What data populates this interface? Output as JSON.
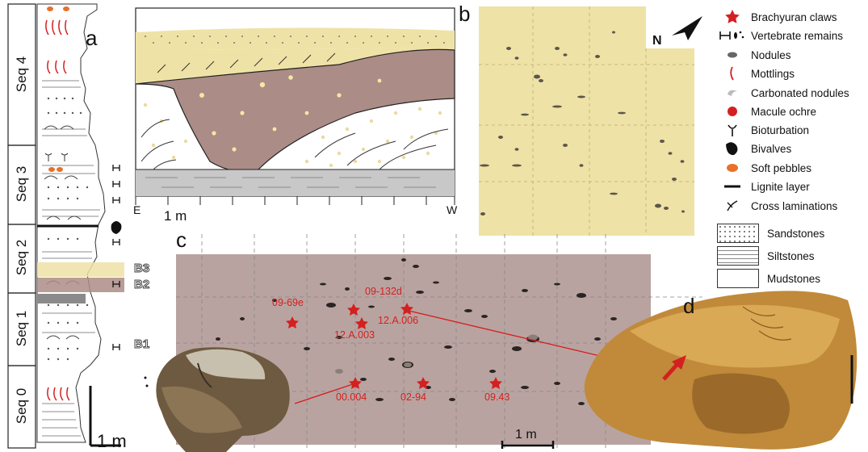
{
  "panels": {
    "a": "a",
    "b": "b",
    "c": "c",
    "d": "d"
  },
  "sequences": [
    "Seq 4",
    "Seq 3",
    "Seq 2",
    "Seq 1",
    "Seq 0"
  ],
  "beds": [
    "B3",
    "B2",
    "B1"
  ],
  "scales": {
    "column": "1 m",
    "section": "1 m",
    "map": "1 m"
  },
  "section_ends": {
    "left": "E",
    "right": "W"
  },
  "north": "N",
  "specimens": [
    "09-69e",
    "09-132d",
    "12.A.003",
    "12.A.006",
    "00.004",
    "02-94",
    "09.43"
  ],
  "legend": [
    {
      "icon": "red-star-icon",
      "label": "Brachyuran claws"
    },
    {
      "icon": "vertebrate-icon",
      "label": "Vertebrate remains"
    },
    {
      "icon": "nodule-icon",
      "label": "Nodules"
    },
    {
      "icon": "mottling-icon",
      "label": "Mottlings"
    },
    {
      "icon": "carbonated-nodule-icon",
      "label": "Carbonated nodules"
    },
    {
      "icon": "red-dot-icon",
      "label": "Macule ochre"
    },
    {
      "icon": "bioturbation-icon",
      "label": "Bioturbation"
    },
    {
      "icon": "bivalve-icon",
      "label": "Bivalves"
    },
    {
      "icon": "orange-pebble-icon",
      "label": "Soft pebbles"
    },
    {
      "icon": "lignite-icon",
      "label": "Lignite layer"
    },
    {
      "icon": "cross-lamination-icon",
      "label": "Cross laminations"
    }
  ],
  "lithology": [
    {
      "label": "Sandstones"
    },
    {
      "label": "Siltstones"
    },
    {
      "label": "Mudstones"
    }
  ],
  "colors": {
    "sand_yellow": "#efe2a6",
    "mud_brown": "#ab8c86",
    "silt_gray": "#c8c8c8",
    "red": "#d42020",
    "map_bg": "#b9a3a0"
  }
}
